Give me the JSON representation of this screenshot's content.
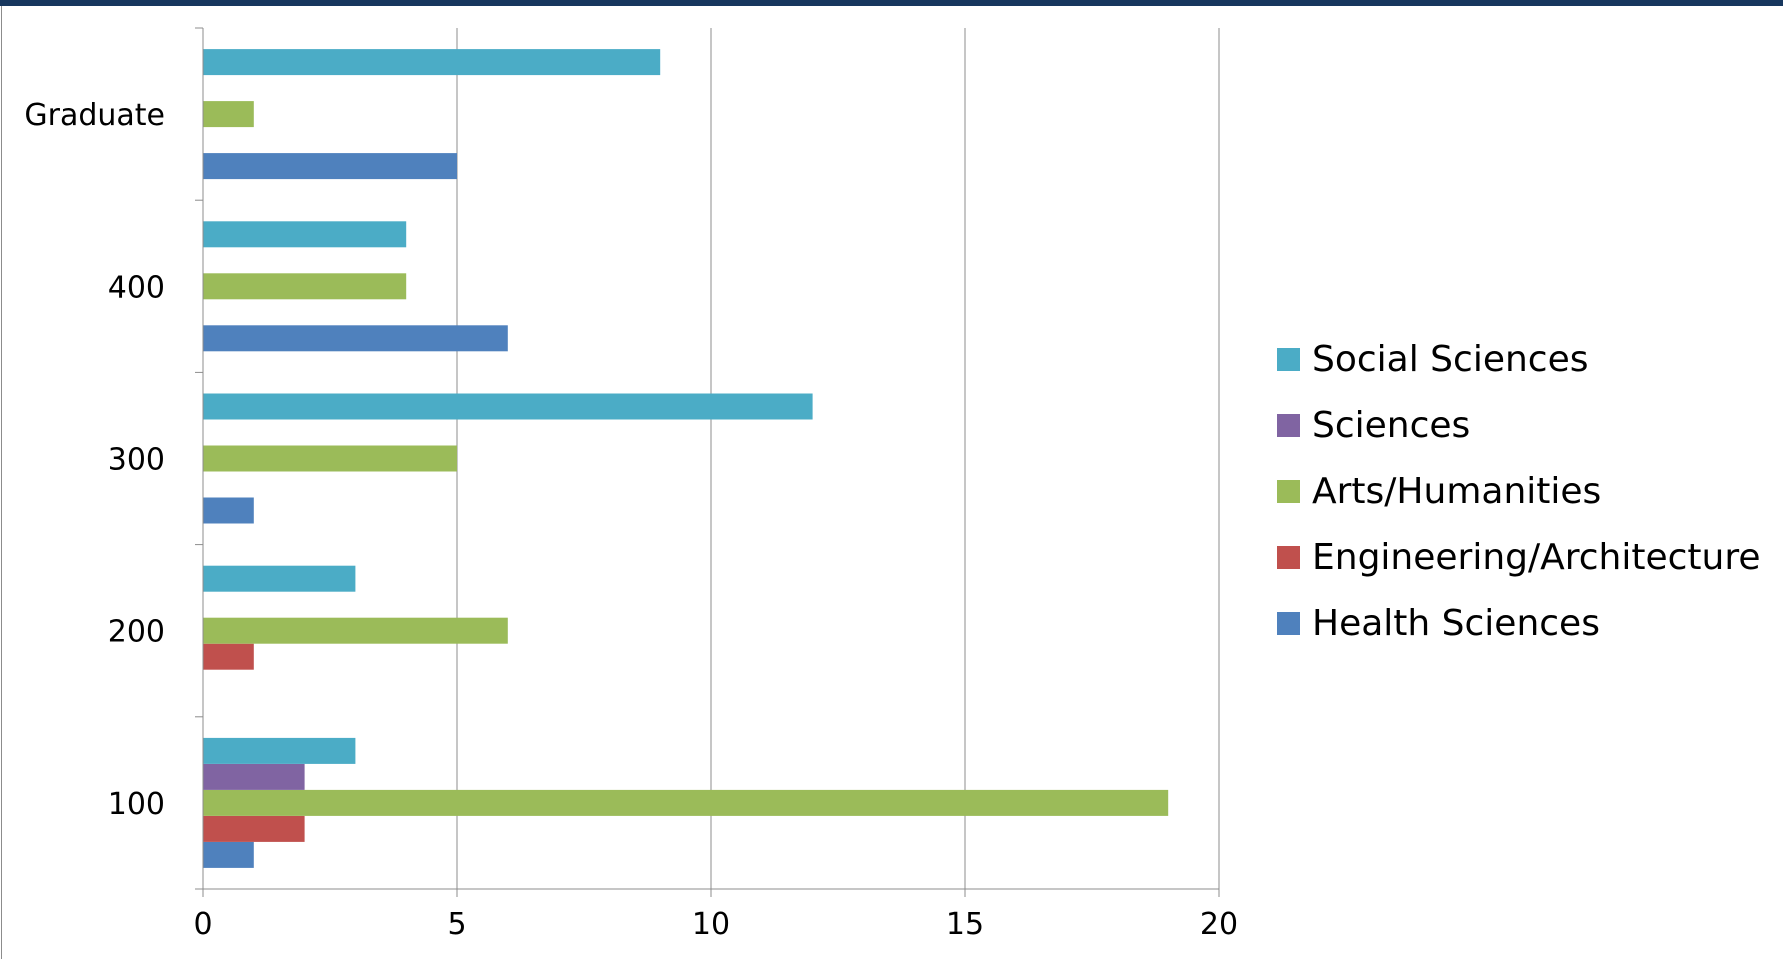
{
  "chart_data": {
    "type": "bar",
    "orientation": "horizontal",
    "categories": [
      "100",
      "200",
      "300",
      "400",
      "Graduate"
    ],
    "series": [
      {
        "name": "Health Sciences",
        "color": "#4f81bd",
        "values": [
          1,
          0,
          1,
          6,
          5
        ]
      },
      {
        "name": "Engineering/Architecture",
        "color": "#c0504d",
        "values": [
          2,
          1,
          0,
          0,
          0
        ]
      },
      {
        "name": "Arts/Humanities",
        "color": "#9bbb59",
        "values": [
          19,
          6,
          5,
          4,
          1
        ]
      },
      {
        "name": "Sciences",
        "color": "#8064a2",
        "values": [
          2,
          0,
          0,
          0,
          0
        ]
      },
      {
        "name": "Social Sciences",
        "color": "#4bacc6",
        "values": [
          3,
          3,
          12,
          4,
          9
        ]
      }
    ],
    "xlim": [
      0,
      20
    ],
    "xticks": [
      "0",
      "5",
      "10",
      "15",
      "20"
    ],
    "grid": "vertical",
    "legend_position": "right",
    "legend_order": [
      "Social Sciences",
      "Sciences",
      "Arts/Humanities",
      "Engineering/Architecture",
      "Health Sciences"
    ]
  }
}
